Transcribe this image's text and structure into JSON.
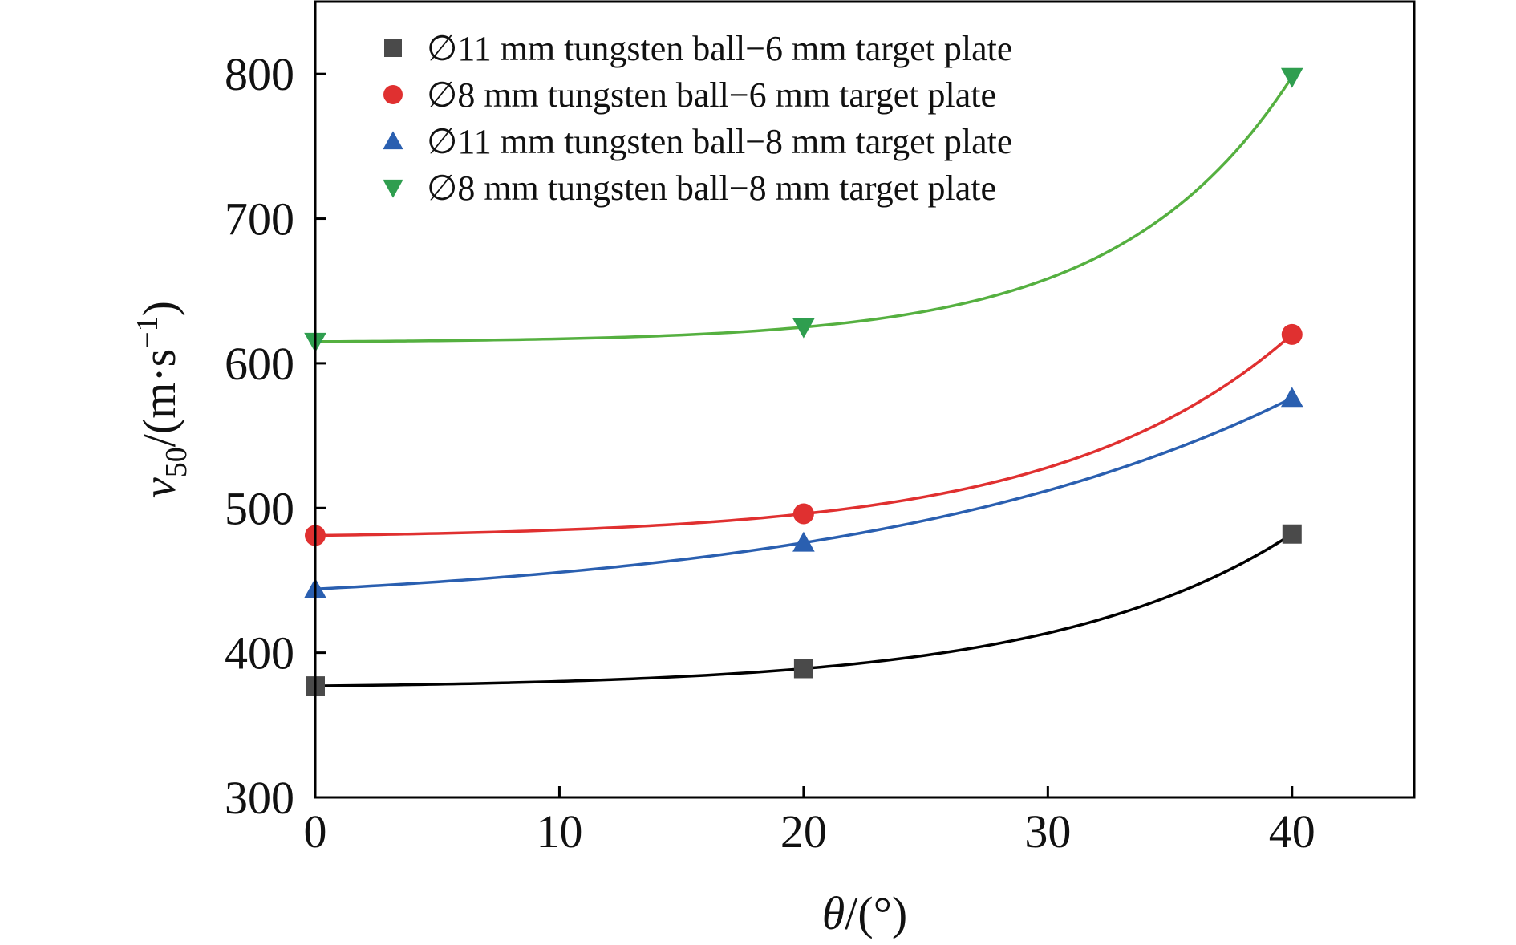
{
  "chart_data": {
    "type": "line",
    "title": "",
    "xlabel": {
      "symbol": "θ",
      "unit": "/(°)"
    },
    "ylabel": {
      "symbol": "v",
      "subscript": "50",
      "unit": "/(m·s",
      "superscript": "−1",
      "close": ")"
    },
    "xlim": [
      0,
      45
    ],
    "ylim": [
      300,
      850
    ],
    "xticks": [
      0,
      10,
      20,
      30,
      40
    ],
    "yticks": [
      300,
      400,
      500,
      600,
      700,
      800
    ],
    "grid": false,
    "legend_position": "top-left",
    "x": [
      0,
      20,
      40
    ],
    "series": [
      {
        "name": "∅11 mm tungsten ball−6 mm target plate",
        "marker": "square",
        "color": "#4a4a4a",
        "line_color": "#000000",
        "values": [
          377,
          389,
          482
        ]
      },
      {
        "name": "∅8 mm tungsten ball−6 mm target plate",
        "marker": "circle",
        "color": "#e03030",
        "line_color": "#e03030",
        "values": [
          481,
          496,
          620
        ]
      },
      {
        "name": "∅11 mm tungsten ball−8 mm target plate",
        "marker": "triangle-up",
        "color": "#2a5fb0",
        "line_color": "#2a5fb0",
        "values": [
          444,
          476,
          576
        ]
      },
      {
        "name": "∅8 mm tungsten ball−8 mm target plate",
        "marker": "triangle-down",
        "color": "#2f9e4f",
        "line_color": "#55b040",
        "values": [
          615,
          625,
          798
        ]
      }
    ]
  }
}
